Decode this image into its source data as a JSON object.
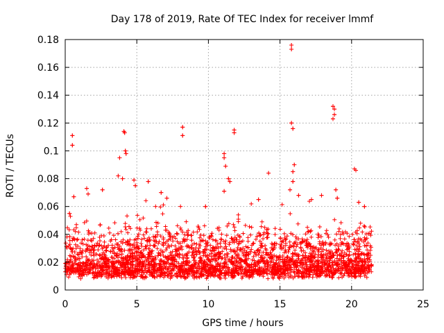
{
  "chart_data": {
    "type": "scatter",
    "title": "Day 178 of 2019, Rate Of TEC Index for receiver lmmf",
    "xlabel": "GPS time / hours",
    "ylabel": "ROTI / TECUs",
    "xlim": [
      0,
      25
    ],
    "ylim": [
      0,
      0.18
    ],
    "x_ticks": [
      "0",
      "5",
      "10",
      "15",
      "20",
      "25"
    ],
    "y_ticks": [
      "0",
      "0.02",
      "0.04",
      "0.06",
      "0.08",
      "0.1",
      "0.12",
      "0.14",
      "0.16",
      "0.18"
    ],
    "grid": true,
    "marker": "+",
    "series": [
      {
        "name": "ROTI",
        "color": "#ff0000",
        "data_extent_hours": [
          0,
          21.4
        ],
        "typical_band": [
          0.008,
          0.04
        ],
        "notable_points": [
          {
            "x": 0.5,
            "y": 0.111
          },
          {
            "x": 0.5,
            "y": 0.104
          },
          {
            "x": 0.6,
            "y": 0.067
          },
          {
            "x": 0.3,
            "y": 0.055
          },
          {
            "x": 1.5,
            "y": 0.073
          },
          {
            "x": 1.6,
            "y": 0.069
          },
          {
            "x": 2.6,
            "y": 0.072
          },
          {
            "x": 3.7,
            "y": 0.082
          },
          {
            "x": 3.8,
            "y": 0.095
          },
          {
            "x": 4.1,
            "y": 0.114
          },
          {
            "x": 4.15,
            "y": 0.113
          },
          {
            "x": 4.2,
            "y": 0.1
          },
          {
            "x": 4.25,
            "y": 0.098
          },
          {
            "x": 4.0,
            "y": 0.08
          },
          {
            "x": 4.8,
            "y": 0.079
          },
          {
            "x": 4.9,
            "y": 0.075
          },
          {
            "x": 5.8,
            "y": 0.078
          },
          {
            "x": 6.7,
            "y": 0.07
          },
          {
            "x": 7.1,
            "y": 0.066
          },
          {
            "x": 8.2,
            "y": 0.117
          },
          {
            "x": 8.2,
            "y": 0.111
          },
          {
            "x": 9.8,
            "y": 0.06
          },
          {
            "x": 11.1,
            "y": 0.098
          },
          {
            "x": 11.1,
            "y": 0.095
          },
          {
            "x": 11.2,
            "y": 0.089
          },
          {
            "x": 11.4,
            "y": 0.08
          },
          {
            "x": 11.5,
            "y": 0.078
          },
          {
            "x": 11.8,
            "y": 0.115
          },
          {
            "x": 11.8,
            "y": 0.113
          },
          {
            "x": 11.1,
            "y": 0.071
          },
          {
            "x": 13.5,
            "y": 0.065
          },
          {
            "x": 14.2,
            "y": 0.084
          },
          {
            "x": 15.8,
            "y": 0.176
          },
          {
            "x": 15.8,
            "y": 0.173
          },
          {
            "x": 15.8,
            "y": 0.12
          },
          {
            "x": 15.9,
            "y": 0.116
          },
          {
            "x": 16.0,
            "y": 0.09
          },
          {
            "x": 15.9,
            "y": 0.085
          },
          {
            "x": 15.7,
            "y": 0.072
          },
          {
            "x": 15.9,
            "y": 0.078
          },
          {
            "x": 16.3,
            "y": 0.068
          },
          {
            "x": 17.2,
            "y": 0.065
          },
          {
            "x": 17.9,
            "y": 0.068
          },
          {
            "x": 18.7,
            "y": 0.132
          },
          {
            "x": 18.8,
            "y": 0.13
          },
          {
            "x": 18.8,
            "y": 0.126
          },
          {
            "x": 18.7,
            "y": 0.123
          },
          {
            "x": 18.9,
            "y": 0.072
          },
          {
            "x": 19.0,
            "y": 0.066
          },
          {
            "x": 20.2,
            "y": 0.087
          },
          {
            "x": 20.3,
            "y": 0.086
          },
          {
            "x": 20.5,
            "y": 0.063
          },
          {
            "x": 20.9,
            "y": 0.06
          }
        ]
      }
    ]
  }
}
